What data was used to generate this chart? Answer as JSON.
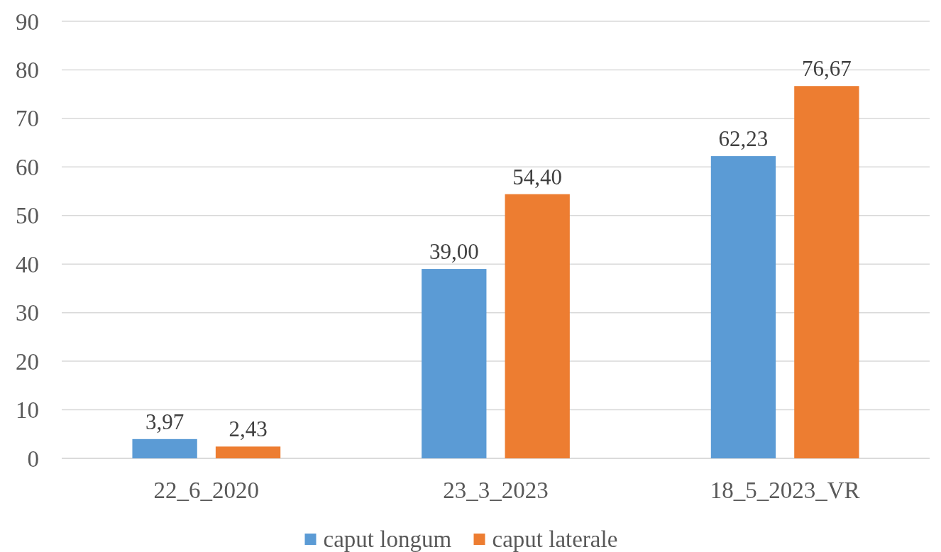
{
  "chart_data": {
    "type": "bar",
    "categories": [
      "22_6_2020",
      "23_3_2023",
      "18_5_2023_VR"
    ],
    "series": [
      {
        "name": "caput longum",
        "color": "#5b9bd5",
        "values": [
          3.97,
          39.0,
          62.23
        ],
        "value_labels": [
          "3,97",
          "39,00",
          "62,23"
        ]
      },
      {
        "name": "caput laterale",
        "color": "#ed7d31",
        "values": [
          2.43,
          54.4,
          76.67
        ],
        "value_labels": [
          "2,43",
          "54,40",
          "76,67"
        ]
      }
    ],
    "ylim": [
      0,
      90
    ],
    "yticks": [
      0,
      10,
      20,
      30,
      40,
      50,
      60,
      70,
      80,
      90
    ],
    "grid": "y",
    "legend": "bottom"
  }
}
